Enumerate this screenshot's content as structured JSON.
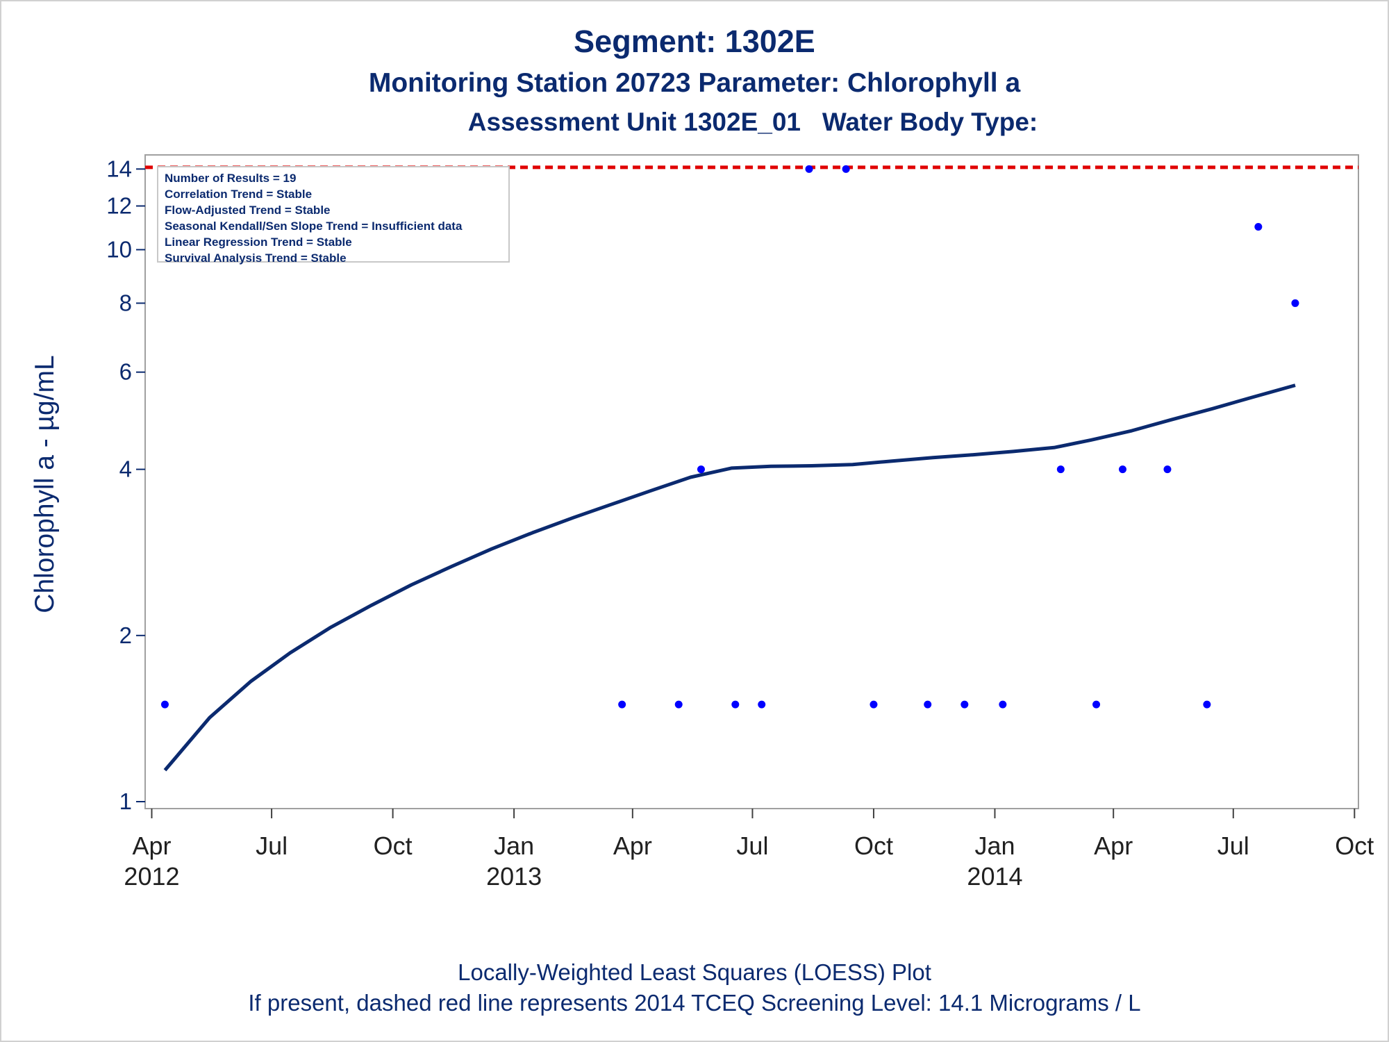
{
  "header": {
    "title": "Segment: 1302E",
    "subtitle": "Monitoring Station 20723 Parameter: Chlorophyll a",
    "subtitle2": "Assessment Unit 1302E_01   Water Body Type:"
  },
  "stats": {
    "lines": [
      "Number of Results = 19",
      "Correlation Trend = Stable",
      "Flow-Adjusted Trend = Stable",
      "Seasonal Kendall/Sen Slope Trend = Insufficient data",
      "Linear Regression Trend = Stable",
      "Survival Analysis Trend = Stable"
    ]
  },
  "footnotes": {
    "line1": "Locally-Weighted Least Squares (LOESS) Plot",
    "line2": "If present, dashed red line represents 2014 TCEQ Screening Level: 14.1 Micrograms / L"
  },
  "colors": {
    "text": "#0b2a6f",
    "points": "#0000ff",
    "loess": "#0b2a6f",
    "screening_line": "#e00000",
    "axis_frame": "#a0a0a0"
  },
  "chart_data": {
    "type": "scatter",
    "ylabel": "Chlorophyll a -  µg/mL",
    "yscale": "log",
    "ylim": [
      1,
      14.3
    ],
    "yticks": [
      1,
      2,
      4,
      6,
      8,
      10,
      12,
      14
    ],
    "xlim": [
      "2012-03-27",
      "2014-10-04"
    ],
    "xticks": [
      {
        "date": "2012-04-01",
        "month": "Apr",
        "year": "2012"
      },
      {
        "date": "2012-07-01",
        "month": "Jul",
        "year": ""
      },
      {
        "date": "2012-10-01",
        "month": "Oct",
        "year": ""
      },
      {
        "date": "2013-01-01",
        "month": "Jan",
        "year": "2013"
      },
      {
        "date": "2013-04-01",
        "month": "Apr",
        "year": ""
      },
      {
        "date": "2013-07-01",
        "month": "Jul",
        "year": ""
      },
      {
        "date": "2013-10-01",
        "month": "Oct",
        "year": ""
      },
      {
        "date": "2014-01-01",
        "month": "Jan",
        "year": "2014"
      },
      {
        "date": "2014-04-01",
        "month": "Apr",
        "year": ""
      },
      {
        "date": "2014-07-01",
        "month": "Jul",
        "year": ""
      },
      {
        "date": "2014-10-01",
        "month": "Oct",
        "year": ""
      }
    ],
    "screening_level": 14.1,
    "legend": "top-left",
    "series": [
      {
        "type": "scatter",
        "points": [
          {
            "x": "2012-04-11",
            "y": 1.5
          },
          {
            "x": "2013-03-24",
            "y": 1.5
          },
          {
            "x": "2013-05-06",
            "y": 1.5
          },
          {
            "x": "2013-05-23",
            "y": 4
          },
          {
            "x": "2013-06-18",
            "y": 1.5
          },
          {
            "x": "2013-07-08",
            "y": 1.5
          },
          {
            "x": "2013-08-13",
            "y": 14
          },
          {
            "x": "2013-09-10",
            "y": 14
          },
          {
            "x": "2013-10-01",
            "y": 1.5
          },
          {
            "x": "2013-11-11",
            "y": 1.5
          },
          {
            "x": "2013-12-09",
            "y": 1.5
          },
          {
            "x": "2014-01-07",
            "y": 1.5
          },
          {
            "x": "2014-02-20",
            "y": 4
          },
          {
            "x": "2014-03-19",
            "y": 1.5
          },
          {
            "x": "2014-04-08",
            "y": 4
          },
          {
            "x": "2014-05-12",
            "y": 4
          },
          {
            "x": "2014-06-11",
            "y": 1.5
          },
          {
            "x": "2014-07-20",
            "y": 11
          },
          {
            "x": "2014-08-17",
            "y": 8
          }
        ]
      },
      {
        "type": "line",
        "points": [
          {
            "x": "2012-04-11",
            "y": 1.14
          },
          {
            "x": "2012-05-15",
            "y": 1.42
          },
          {
            "x": "2012-06-15",
            "y": 1.65
          },
          {
            "x": "2012-07-15",
            "y": 1.86
          },
          {
            "x": "2012-08-15",
            "y": 2.07
          },
          {
            "x": "2012-09-15",
            "y": 2.27
          },
          {
            "x": "2012-10-15",
            "y": 2.47
          },
          {
            "x": "2012-11-15",
            "y": 2.67
          },
          {
            "x": "2012-12-15",
            "y": 2.87
          },
          {
            "x": "2013-01-15",
            "y": 3.07
          },
          {
            "x": "2013-02-15",
            "y": 3.27
          },
          {
            "x": "2013-03-15",
            "y": 3.45
          },
          {
            "x": "2013-04-15",
            "y": 3.66
          },
          {
            "x": "2013-05-15",
            "y": 3.87
          },
          {
            "x": "2013-06-15",
            "y": 4.02
          },
          {
            "x": "2013-07-15",
            "y": 4.05
          },
          {
            "x": "2013-08-15",
            "y": 4.06
          },
          {
            "x": "2013-09-15",
            "y": 4.08
          },
          {
            "x": "2013-10-15",
            "y": 4.14
          },
          {
            "x": "2013-11-15",
            "y": 4.2
          },
          {
            "x": "2013-12-15",
            "y": 4.25
          },
          {
            "x": "2014-01-15",
            "y": 4.31
          },
          {
            "x": "2014-02-15",
            "y": 4.38
          },
          {
            "x": "2014-03-15",
            "y": 4.52
          },
          {
            "x": "2014-04-15",
            "y": 4.7
          },
          {
            "x": "2014-05-15",
            "y": 4.92
          },
          {
            "x": "2014-06-15",
            "y": 5.15
          },
          {
            "x": "2014-07-15",
            "y": 5.4
          },
          {
            "x": "2014-08-17",
            "y": 5.68
          }
        ]
      }
    ]
  }
}
